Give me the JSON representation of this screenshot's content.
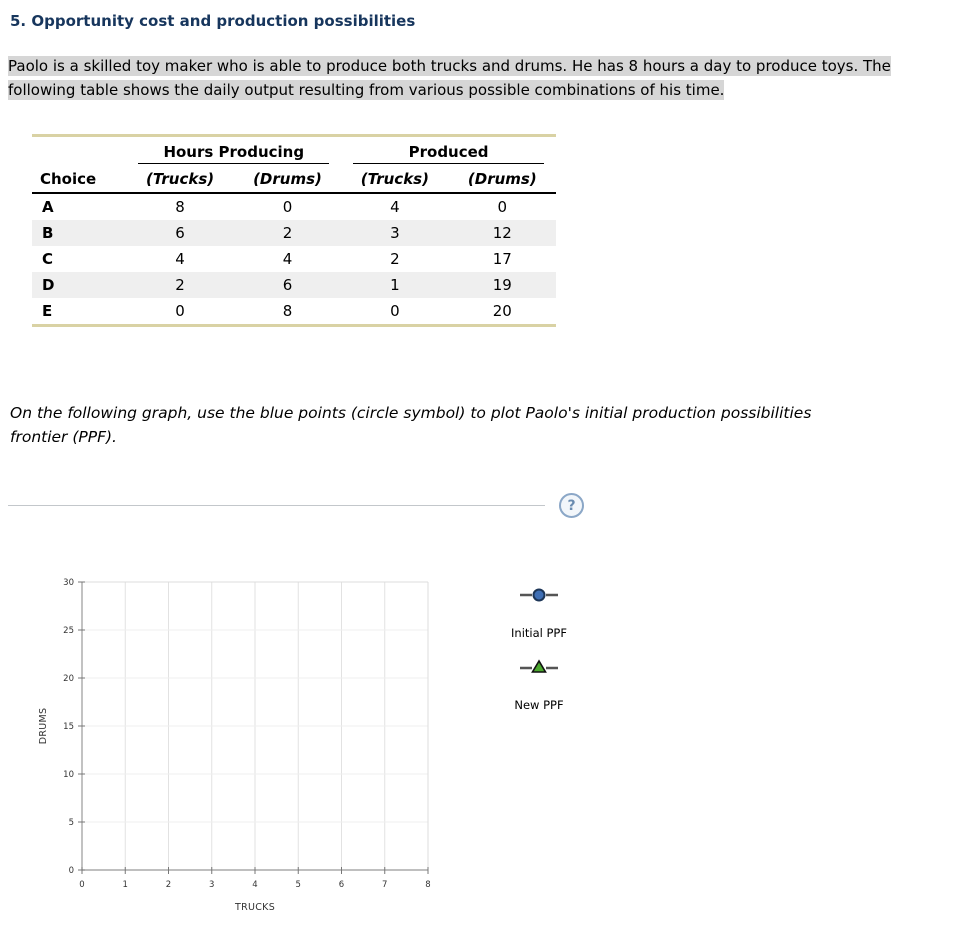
{
  "page": {
    "title": "5. Opportunity cost and production possibilities",
    "intro": "Paolo is a skilled toy maker who is able to produce both trucks and drums. He has 8 hours a day to produce toys. The following table shows the daily output resulting from various possible combinations of his time.",
    "instruction": "On the following graph, use the blue points (circle symbol) to plot Paolo's initial production possibilities frontier (PPF)."
  },
  "help": {
    "icon_label": "?"
  },
  "table": {
    "group_headers": [
      "Hours Producing",
      "Produced"
    ],
    "col_headers": [
      "Choice",
      "(Trucks)",
      "(Drums)",
      "(Trucks)",
      "(Drums)"
    ],
    "rows": [
      {
        "choice": "A",
        "hours_trucks": "8",
        "hours_drums": "0",
        "produced_trucks": "4",
        "produced_drums": "0"
      },
      {
        "choice": "B",
        "hours_trucks": "6",
        "hours_drums": "2",
        "produced_trucks": "3",
        "produced_drums": "12"
      },
      {
        "choice": "C",
        "hours_trucks": "4",
        "hours_drums": "4",
        "produced_trucks": "2",
        "produced_drums": "17"
      },
      {
        "choice": "D",
        "hours_trucks": "2",
        "hours_drums": "6",
        "produced_trucks": "1",
        "produced_drums": "19"
      },
      {
        "choice": "E",
        "hours_trucks": "0",
        "hours_drums": "8",
        "produced_trucks": "0",
        "produced_drums": "20"
      }
    ]
  },
  "chart_data": {
    "type": "scatter",
    "title": "",
    "xlabel": "TRUCKS",
    "ylabel": "DRUMS",
    "xlim": [
      0,
      8
    ],
    "ylim": [
      0,
      30
    ],
    "x_ticks": [
      0,
      1,
      2,
      3,
      4,
      5,
      6,
      7,
      8
    ],
    "y_ticks": [
      0,
      5,
      10,
      15,
      20,
      25,
      30
    ],
    "grid": true,
    "legend_position": "right",
    "series": [
      {
        "name": "Initial PPF",
        "symbol": "circle",
        "color": "#3f6fb5",
        "points": []
      },
      {
        "name": "New PPF",
        "symbol": "triangle",
        "color": "#4ba82e",
        "points": []
      }
    ]
  },
  "colors": {
    "title": "#17365d",
    "highlight": "#d6d6d6",
    "table_accent": "#d9d2a4",
    "row_stripe": "#efefef",
    "initial_ppf": "#3f6fb5",
    "new_ppf": "#4ba82e"
  }
}
